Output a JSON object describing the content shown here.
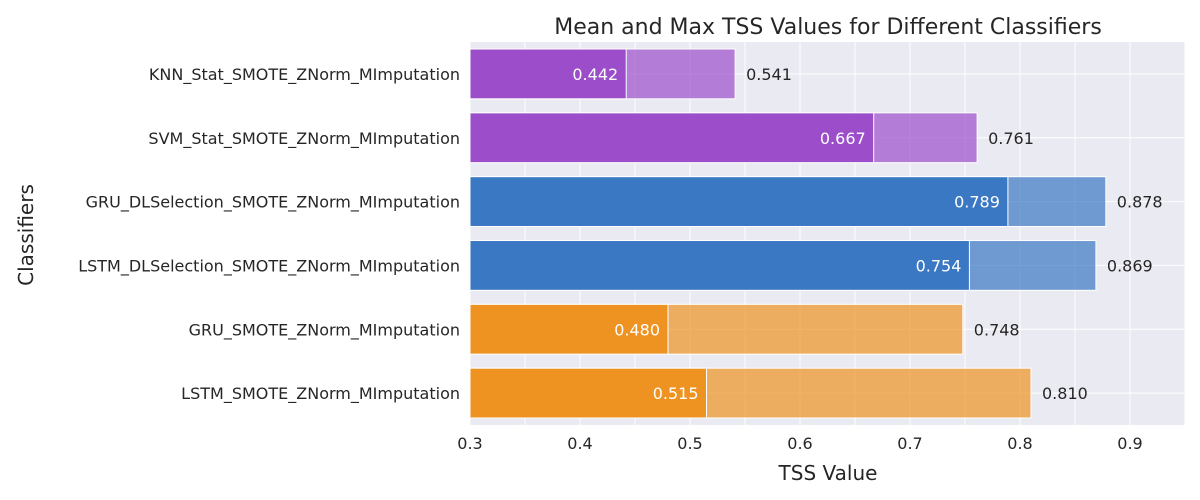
{
  "chart_data": {
    "type": "bar",
    "orientation": "horizontal",
    "title": "Mean and Max TSS Values for Different Classifiers",
    "xlabel": "TSS Value",
    "ylabel": "Classifiers",
    "xlim": [
      0.3,
      0.95
    ],
    "xticks": [
      "0.3",
      "0.4",
      "0.5",
      "0.6",
      "0.7",
      "0.8",
      "0.9"
    ],
    "grid": true,
    "categories": [
      "KNN_Stat_SMOTE_ZNorm_MImputation",
      "SVM_Stat_SMOTE_ZNorm_MImputation",
      "GRU_DLSelection_SMOTE_ZNorm_MImputation",
      "LSTM_DLSelection_SMOTE_ZNorm_MImputation",
      "GRU_SMOTE_ZNorm_MImputation",
      "LSTM_SMOTE_ZNorm_MImputation"
    ],
    "series": [
      {
        "values": [
          0.442,
          0.667,
          0.789,
          0.754,
          0.48,
          0.515
        ]
      },
      {
        "values": [
          0.541,
          0.761,
          0.878,
          0.869,
          0.748,
          0.81
        ]
      }
    ],
    "mean_labels": [
      "0.442",
      "0.667",
      "0.789",
      "0.754",
      "0.480",
      "0.515"
    ],
    "max_labels": [
      "0.541",
      "0.761",
      "0.878",
      "0.869",
      "0.748",
      "0.810"
    ],
    "bar_colors": [
      "#9b4dca",
      "#9b4dca",
      "#3a78c3",
      "#3a78c3",
      "#ee9322",
      "#ee9322"
    ],
    "plot_background": "#eaeaf2",
    "grid_color": "#ffffff"
  }
}
